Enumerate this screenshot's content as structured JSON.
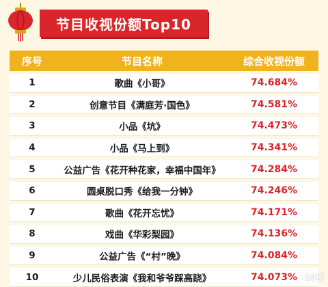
{
  "title": "节目收视份额Top10",
  "header": {
    "rank": "序号",
    "name": "节目名称",
    "share": "综合收视份额"
  },
  "rows": [
    {
      "rank": "1",
      "name": "歌曲《小哥》",
      "share": "74.684%"
    },
    {
      "rank": "2",
      "name": "创意节目《满庭芳·国色》",
      "share": "74.581%"
    },
    {
      "rank": "3",
      "name": "小品《坑》",
      "share": "74.473%"
    },
    {
      "rank": "4",
      "name": "小品《马上到》",
      "share": "74.341%"
    },
    {
      "rank": "5",
      "name": "公益广告《花开种花家，幸福中国年》",
      "share": "74.284%"
    },
    {
      "rank": "6",
      "name": "圆桌脱口秀《给我一分钟》",
      "share": "74.246%"
    },
    {
      "rank": "7",
      "name": "歌曲《花开忘忧》",
      "share": "74.171%"
    },
    {
      "rank": "8",
      "name": "戏曲《华彩梨园》",
      "share": "74.136%"
    },
    {
      "rank": "9",
      "name": "公益广告《“村”晚》",
      "share": "74.084%"
    },
    {
      "rank": "10",
      "name": "少儿民俗表演《我和爷爷踩高跷》",
      "share": "74.073%"
    }
  ],
  "watermark": "10楼",
  "colors": {
    "banner": "#d8262a",
    "header": "#f0b21d",
    "background": "#fdf7e4",
    "share_text": "#d8262a"
  },
  "icons": {
    "decoration": "lantern-icon"
  }
}
